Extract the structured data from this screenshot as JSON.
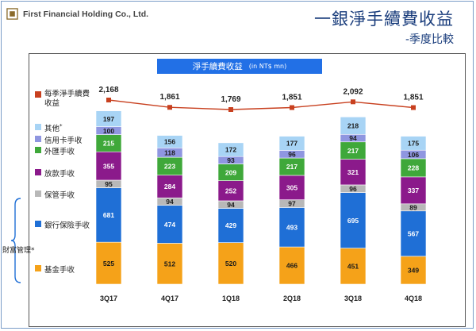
{
  "header": {
    "company_name": "First Financial Holding Co., Ltd.",
    "title": "一銀淨手續費收益",
    "subtitle": "-季度比較"
  },
  "chart_data": {
    "type": "bar",
    "stacked": true,
    "unit_banner_text": "淨手續費收益",
    "unit_banner_unit": "(in NT$ mn)",
    "categories": [
      "3Q17",
      "4Q17",
      "1Q18",
      "2Q18",
      "3Q18",
      "4Q18"
    ],
    "series": [
      {
        "name": "基金手收",
        "color": "#f5a219",
        "values": [
          525,
          512,
          520,
          466,
          451,
          349
        ]
      },
      {
        "name": "銀行保險手收",
        "color": "#1f6fd6",
        "values": [
          681,
          474,
          429,
          493,
          695,
          567
        ]
      },
      {
        "name": "保管手收",
        "color": "#b8b8b8",
        "values": [
          95,
          94,
          94,
          97,
          96,
          89
        ]
      },
      {
        "name": "放款手收",
        "color": "#8b1a8b",
        "values": [
          355,
          284,
          252,
          305,
          321,
          337
        ]
      },
      {
        "name": "外匯手收",
        "color": "#3fa83a",
        "values": [
          215,
          223,
          209,
          217,
          217,
          228
        ]
      },
      {
        "name": "信用卡手收",
        "color": "#8f96e0",
        "values": [
          100,
          118,
          93,
          96,
          94,
          106
        ]
      },
      {
        "name": "其他",
        "color": "#a8d4f5",
        "values": [
          197,
          156,
          172,
          177,
          218,
          175
        ]
      }
    ],
    "line_series": {
      "name": "每季淨手續費收益",
      "color": "#c8401f",
      "values": [
        2168,
        1861,
        1769,
        1851,
        2092,
        1851
      ],
      "labels": [
        "2,168",
        "1,861",
        "1,769",
        "1,851",
        "2,092",
        "1,851"
      ]
    },
    "legend_top": [
      {
        "label": "每季淨手續費收益",
        "color": "#c8401f"
      }
    ],
    "legend": [
      {
        "label": "其他",
        "sup": "*",
        "color": "#a8d4f5"
      },
      {
        "label": "信用卡手收",
        "sup": "",
        "color": "#8f96e0"
      },
      {
        "label": "外匯手收",
        "sup": "",
        "color": "#3fa83a"
      },
      {
        "label": "放款手收",
        "sup": "",
        "color": "#8b1a8b"
      },
      {
        "label": "保管手收",
        "sup": "",
        "color": "#b8b8b8"
      },
      {
        "label": "銀行保險手收",
        "sup": "",
        "color": "#1f6fd6"
      },
      {
        "label": "基金手收",
        "sup": "",
        "color": "#f5a219"
      }
    ],
    "brace_label": "財富管理*"
  }
}
